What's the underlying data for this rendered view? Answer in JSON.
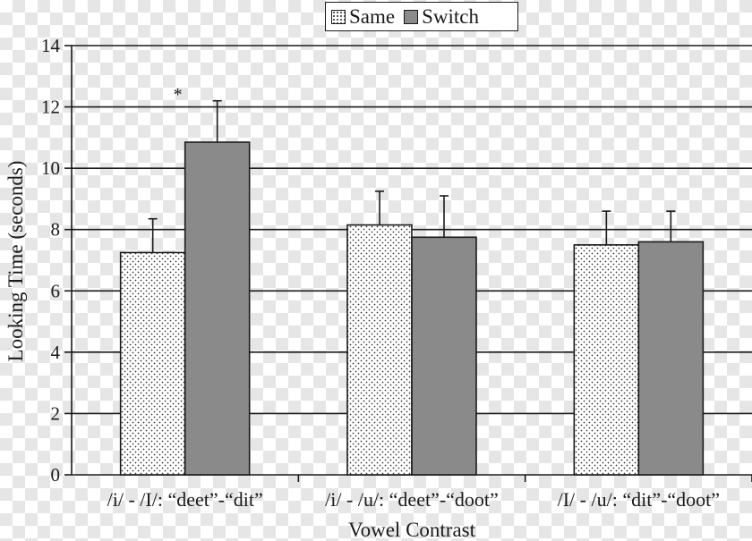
{
  "legend": {
    "same_label": "Same",
    "switch_label": "Switch"
  },
  "chart_data": {
    "type": "bar",
    "categories": [
      "/i/ - /I/: “deet”-“dit”",
      "/i/ - /u/: “deet”-“doot”",
      "/I/ - /u/: “dit”-“doot”"
    ],
    "series": [
      {
        "name": "Same",
        "values": [
          7.25,
          8.15,
          7.5
        ],
        "errors": [
          1.1,
          1.1,
          1.1
        ],
        "color": "#ffffff",
        "pattern": "dots"
      },
      {
        "name": "Switch",
        "values": [
          10.85,
          7.75,
          7.6
        ],
        "errors": [
          1.35,
          1.35,
          1.0
        ],
        "color": "#8a8a8a",
        "pattern": "solid"
      }
    ],
    "annotations": [
      {
        "text": "*",
        "category": 0
      }
    ],
    "xlabel": "Vowel Contrast",
    "ylabel": "Looking Time (seconds)",
    "ylim": [
      0,
      14
    ],
    "yticks": [
      0,
      2,
      4,
      6,
      8,
      10,
      12,
      14
    ],
    "grid": true,
    "legend_position": "top-center"
  }
}
